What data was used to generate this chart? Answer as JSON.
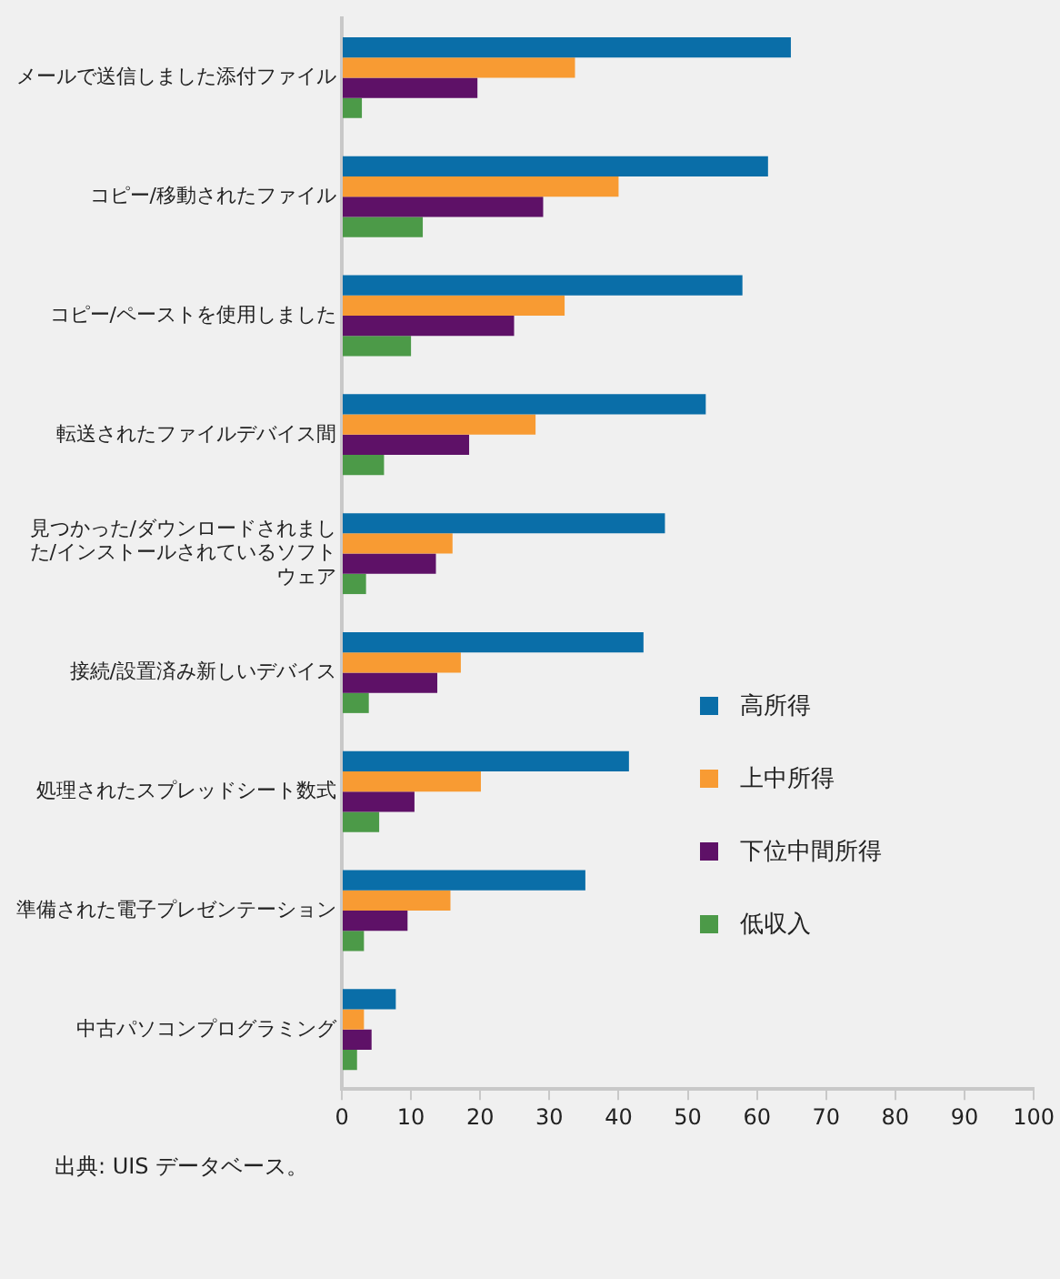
{
  "chart_data": {
    "type": "bar",
    "orientation": "horizontal",
    "categories": [
      "メールで送信しました添付ファイル",
      "コピー/移動されたファイル",
      "コピー/ペーストを使用しました",
      "転送されたファイルデバイス間",
      "見つかった/ダウンロードされました/インストールされているソフトウェア",
      "接続/設置済み新しいデバイス",
      "処理されたスプレッドシート数式",
      "準備された電子プレゼンテーション",
      "中古パソコンプログラミング"
    ],
    "series": [
      {
        "name": "高所得",
        "color": "#0a6ea8",
        "values": [
          64.9,
          61.6,
          57.9,
          52.6,
          46.7,
          43.6,
          41.5,
          35.2,
          7.8
        ]
      },
      {
        "name": "上中所得",
        "color": "#f89b33",
        "values": [
          33.7,
          40.0,
          32.2,
          28.0,
          16.0,
          17.2,
          20.1,
          15.7,
          3.2
        ]
      },
      {
        "name": "下位中間所得",
        "color": "#5e1167",
        "values": [
          19.6,
          29.1,
          24.9,
          18.4,
          13.6,
          13.8,
          10.5,
          9.5,
          4.3
        ]
      },
      {
        "name": "低収入",
        "color": "#4c9a48",
        "values": [
          2.9,
          11.7,
          10.0,
          6.1,
          3.5,
          3.9,
          5.4,
          3.2,
          2.2
        ]
      }
    ],
    "xlim": [
      0,
      100
    ],
    "xticks": [
      0,
      10,
      20,
      30,
      40,
      50,
      60,
      70,
      80,
      90,
      100
    ],
    "grid": false,
    "legend": "right",
    "annotations": [
      "出典: UIS データベース。"
    ]
  }
}
